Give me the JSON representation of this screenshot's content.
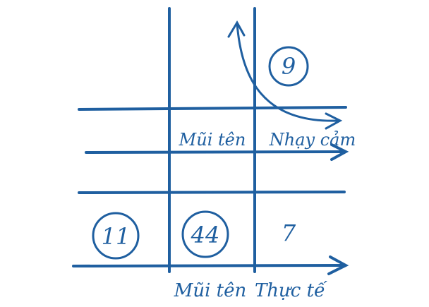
{
  "colors": {
    "ink": "#1f5fa0",
    "background": "#ffffff"
  },
  "labels": {
    "row_label_left": "Mũi tên",
    "row_label_right": "Nhạy cảm",
    "bottom_label_left": "Mũi tên",
    "bottom_label_right": "Thực tế"
  },
  "numbers": {
    "top_right": "9",
    "bottom_left": "11",
    "bottom_middle": "44",
    "bottom_right": "7"
  }
}
